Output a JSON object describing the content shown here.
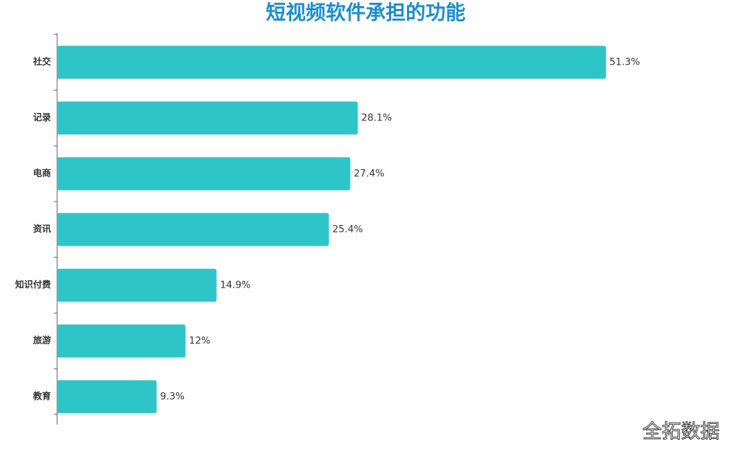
{
  "chart_data": {
    "type": "bar",
    "orientation": "horizontal",
    "title": "短视频软件承担的功能",
    "categories": [
      "社交",
      "记录",
      "电商",
      "资讯",
      "知识付费",
      "旅游",
      "教育"
    ],
    "values": [
      51.3,
      28.1,
      27.4,
      25.4,
      14.9,
      12,
      9.3
    ],
    "value_labels": [
      "51.3%",
      "28.1%",
      "27.4%",
      "25.4%",
      "14.9%",
      "12%",
      "9.3%"
    ],
    "color": "#2ec5c9",
    "watermark": "全拓数据"
  }
}
